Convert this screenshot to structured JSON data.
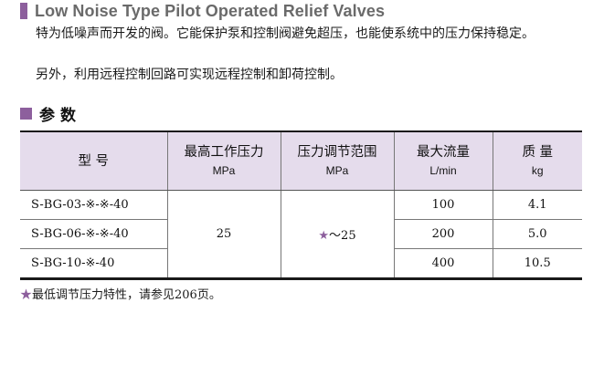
{
  "header": {
    "title": "Low Noise Type Pilot Operated Relief Valves"
  },
  "description": {
    "line1": "特为低噪声而开发的阀。它能保护泵和控制阀避免超压，也能使系统中的压力保持稳定。",
    "line2": "另外，利用远程控制回路可实现远程控制和卸荷控制。"
  },
  "section": {
    "title": "参数"
  },
  "colors": {
    "accent": "#8d5f9d",
    "header_bg": "#e5dcec"
  },
  "table": {
    "headers": [
      {
        "label": "型 号",
        "unit": ""
      },
      {
        "label": "最高工作压力",
        "unit": "MPa"
      },
      {
        "label": "压力调节范围",
        "unit": "MPa"
      },
      {
        "label": "最大流量",
        "unit": "L/min"
      },
      {
        "label": "质 量",
        "unit": "kg"
      }
    ],
    "max_pressure": "25",
    "pressure_range": "～25",
    "pressure_range_star": "★",
    "rows": [
      {
        "model": "S-BG-03-※-※-40",
        "flow": "100",
        "mass": "4.1"
      },
      {
        "model": "S-BG-06-※-※-40",
        "flow": "200",
        "mass": "5.0"
      },
      {
        "model": "S-BG-10-※-40",
        "flow": "400",
        "mass": "10.5"
      }
    ]
  },
  "note": {
    "star": "★",
    "text": "最低调节压力特性，请参见206页。"
  }
}
